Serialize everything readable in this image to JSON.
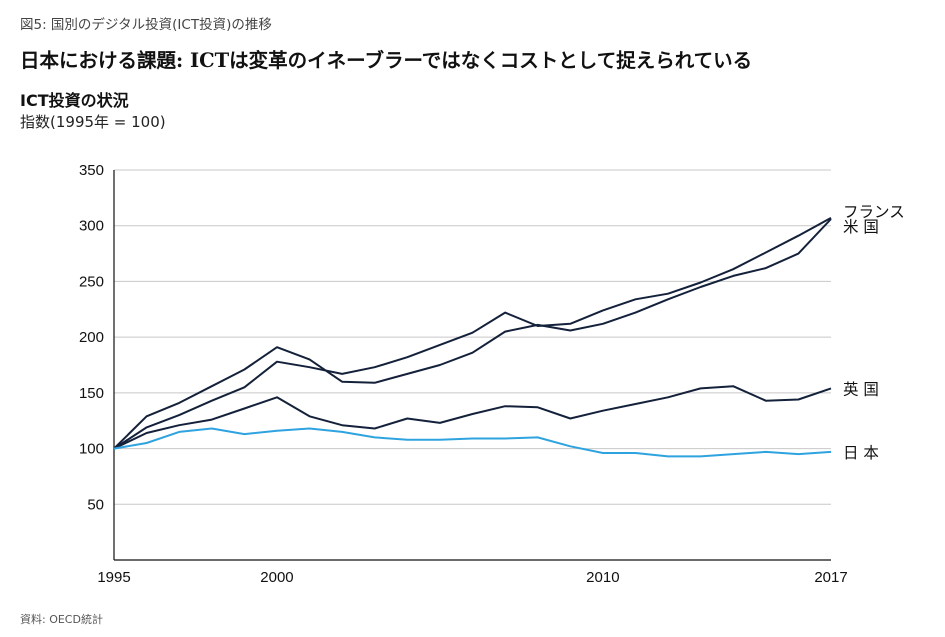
{
  "header": {
    "figure_label": "図5: 国別のデジタル投資(ICT投資)の推移",
    "headline": "日本における課題: ICTは変革のイネーブラーではなくコストとして捉えられている"
  },
  "footer": {
    "source": "資料: OECD統計"
  },
  "chart_data": {
    "type": "line",
    "title": "ICT投資の状況",
    "subtitle": "指数(1995年 = 100)",
    "xlabel": "",
    "ylabel": "",
    "xlim": [
      1995,
      2017
    ],
    "ylim": [
      0,
      350
    ],
    "y_ticks": [
      50,
      100,
      150,
      200,
      250,
      300,
      350
    ],
    "x_ticks": [
      1995,
      2000,
      2010,
      2017
    ],
    "grid": "horizontal",
    "legend": "inline-right",
    "x": [
      1995,
      1996,
      1997,
      1998,
      1999,
      2000,
      2001,
      2002,
      2003,
      2004,
      2005,
      2006,
      2007,
      2008,
      2009,
      2010,
      2011,
      2012,
      2013,
      2014,
      2015,
      2016,
      2017
    ],
    "series": [
      {
        "name": "フランス",
        "color": "#14213a",
        "values": [
          100,
          129,
          141,
          156,
          171,
          191,
          180,
          160,
          159,
          167,
          175,
          186,
          205,
          211,
          206,
          212,
          222,
          234,
          245,
          255,
          262,
          275,
          306
        ]
      },
      {
        "name": "米 国",
        "color": "#14213a",
        "values": [
          100,
          119,
          130,
          143,
          155,
          178,
          173,
          167,
          173,
          182,
          193,
          204,
          222,
          210,
          212,
          224,
          234,
          239,
          249,
          261,
          276,
          291,
          307
        ]
      },
      {
        "name": "英 国",
        "color": "#14213a",
        "values": [
          100,
          114,
          121,
          126,
          136,
          146,
          129,
          121,
          118,
          127,
          123,
          131,
          138,
          137,
          127,
          134,
          140,
          146,
          154,
          156,
          143,
          144,
          154
        ]
      },
      {
        "name": "日 本",
        "color": "#2ea3df",
        "values": [
          100,
          105,
          115,
          118,
          113,
          116,
          118,
          115,
          110,
          108,
          108,
          109,
          109,
          110,
          102,
          96,
          96,
          93,
          93,
          95,
          97,
          95,
          97
        ]
      }
    ]
  }
}
